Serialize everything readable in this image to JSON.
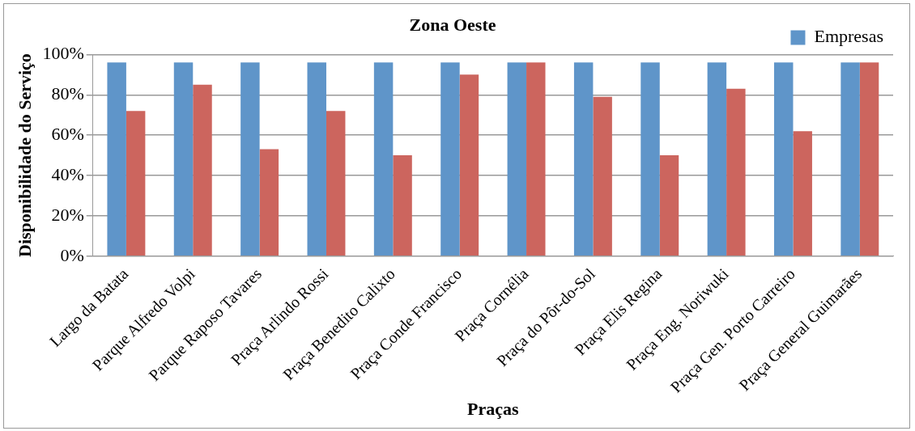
{
  "chart_data": {
    "type": "bar",
    "title": "Zona Oeste",
    "xlabel": "Praças",
    "ylabel": "Disponibilidade do Serviço",
    "categories": [
      "Largo da Batata",
      "Parque Alfredo Volpi",
      "Parque Raposo Tavares",
      "Praça Arlindo Rossi",
      "Praça Benedito Calixto",
      "Praça Conde Francisco",
      "Praça Cornélia",
      "Praça do Pôr-do-Sol",
      "Praça Elis Regina",
      "Praça Eng. Noriwuki",
      "Praça Gen. Porto Carreiro",
      "Praça General Guimarães"
    ],
    "series": [
      {
        "name": "Empresas",
        "color": "#5f95c9",
        "values": [
          96,
          96,
          96,
          96,
          96,
          96,
          96,
          96,
          96,
          96,
          96,
          96
        ]
      },
      {
        "color": "#cc655e",
        "values": [
          72,
          85,
          53,
          72,
          50,
          90,
          96,
          79,
          50,
          83,
          62,
          96
        ]
      }
    ],
    "ylim": [
      0,
      100
    ],
    "yticks": [
      {
        "value": 0,
        "label": "0%"
      },
      {
        "value": 20,
        "label": "20%"
      },
      {
        "value": 40,
        "label": "40%"
      },
      {
        "value": 60,
        "label": "60%"
      },
      {
        "value": 80,
        "label": "80%"
      },
      {
        "value": 100,
        "label": "100%"
      }
    ],
    "grid": "y",
    "legend": "top right"
  }
}
